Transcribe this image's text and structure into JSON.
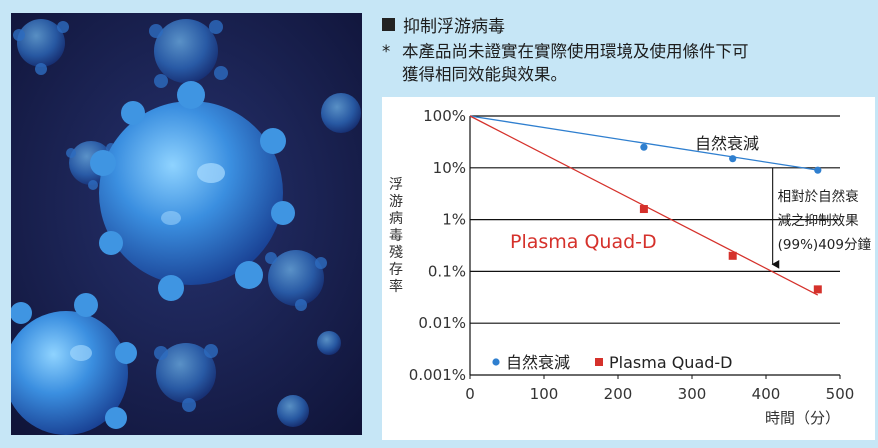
{
  "section": {
    "bullet_icon": "black-square-icon",
    "title": "抑制浮游病毒"
  },
  "note": {
    "mark": "*",
    "line1": "本產品尚未證實在實際使用環境及使用條件下可",
    "line2": "獲得相同效能與效果。"
  },
  "chart_data": {
    "type": "line",
    "yscale": "log",
    "xlabel": "時間（分）",
    "ylabel": "浮游病毒殘存率",
    "xlim": [
      0,
      500
    ],
    "ylim": [
      0.001,
      100
    ],
    "xticks": [
      "0",
      "100",
      "200",
      "300",
      "400",
      "500"
    ],
    "yticks": [
      "100%",
      "10%",
      "1%",
      "0.1%",
      "0.01%",
      "0.001%"
    ],
    "grid": "horizontal",
    "legend_position": "bottom-left",
    "series": [
      {
        "name": "自然衰減",
        "color": "#2f7fcf",
        "marker": "circle",
        "points": [
          [
            235,
            25
          ],
          [
            355,
            15
          ],
          [
            470,
            9
          ]
        ],
        "trend": [
          [
            0,
            100
          ],
          [
            470,
            9
          ]
        ]
      },
      {
        "name": "Plasma Quad-D",
        "color": "#d5312b",
        "marker": "square",
        "points": [
          [
            235,
            1.6
          ],
          [
            355,
            0.2
          ],
          [
            470,
            0.045
          ]
        ],
        "trend": [
          [
            0,
            100
          ],
          [
            470,
            0.035
          ]
        ]
      }
    ],
    "annotations": {
      "natural_label": "自然衰減",
      "plasma_label": "Plasma Quad-D",
      "relative_line1": "相對於自然衰",
      "relative_line2": "減之抑制效果",
      "relative_line3": "(99%)409分鐘",
      "arrow_x": 409,
      "arrow_from": 10,
      "arrow_to": 0.1
    }
  },
  "image": {
    "subject": "virus-particles-illustration",
    "background_color": "#141a45",
    "virus_color": "#3a8fd6"
  }
}
